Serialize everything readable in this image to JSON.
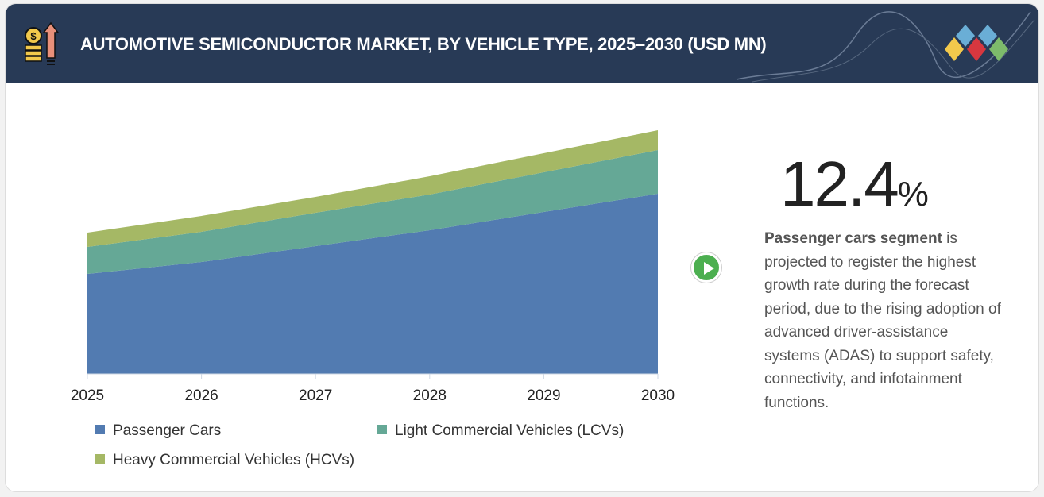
{
  "header": {
    "title": "AUTOMOTIVE SEMICONDUCTOR MARKET, BY VEHICLE TYPE, 2025–2030 (USD MN)",
    "icon": "money-growth-icon",
    "logo": "diamond-logo"
  },
  "chart_data": {
    "type": "area",
    "stacked": true,
    "title": "AUTOMOTIVE SEMICONDUCTOR MARKET, BY VEHICLE TYPE, 2025–2030 (USD MN)",
    "categories": [
      "2025",
      "2026",
      "2027",
      "2028",
      "2029",
      "2030"
    ],
    "series": [
      {
        "name": "Passenger Cars",
        "color": "#527bb1",
        "values": [
          126,
          141,
          161,
          181,
          204,
          227
        ]
      },
      {
        "name": "Light Commercial Vehicles (LCVs)",
        "color": "#65a896",
        "values": [
          34,
          38,
          42,
          45,
          50,
          55
        ]
      },
      {
        "name": "Heavy Commercial Vehicles (HCVs)",
        "color": "#a5b865",
        "values": [
          18,
          20,
          20,
          23,
          24,
          25
        ]
      }
    ],
    "ylim": [
      0,
      307
    ],
    "grid": false,
    "y_axis_shown": false,
    "legend_placement": "bottom"
  },
  "callout": {
    "value": "12.4",
    "unit": "%",
    "bold": "Passenger cars segment",
    "text": " is projected to register the highest growth rate during the forecast period, due to the rising adoption of advanced driver-assistance systems (ADAS) to support safety, connectivity, and infotainment functions."
  }
}
